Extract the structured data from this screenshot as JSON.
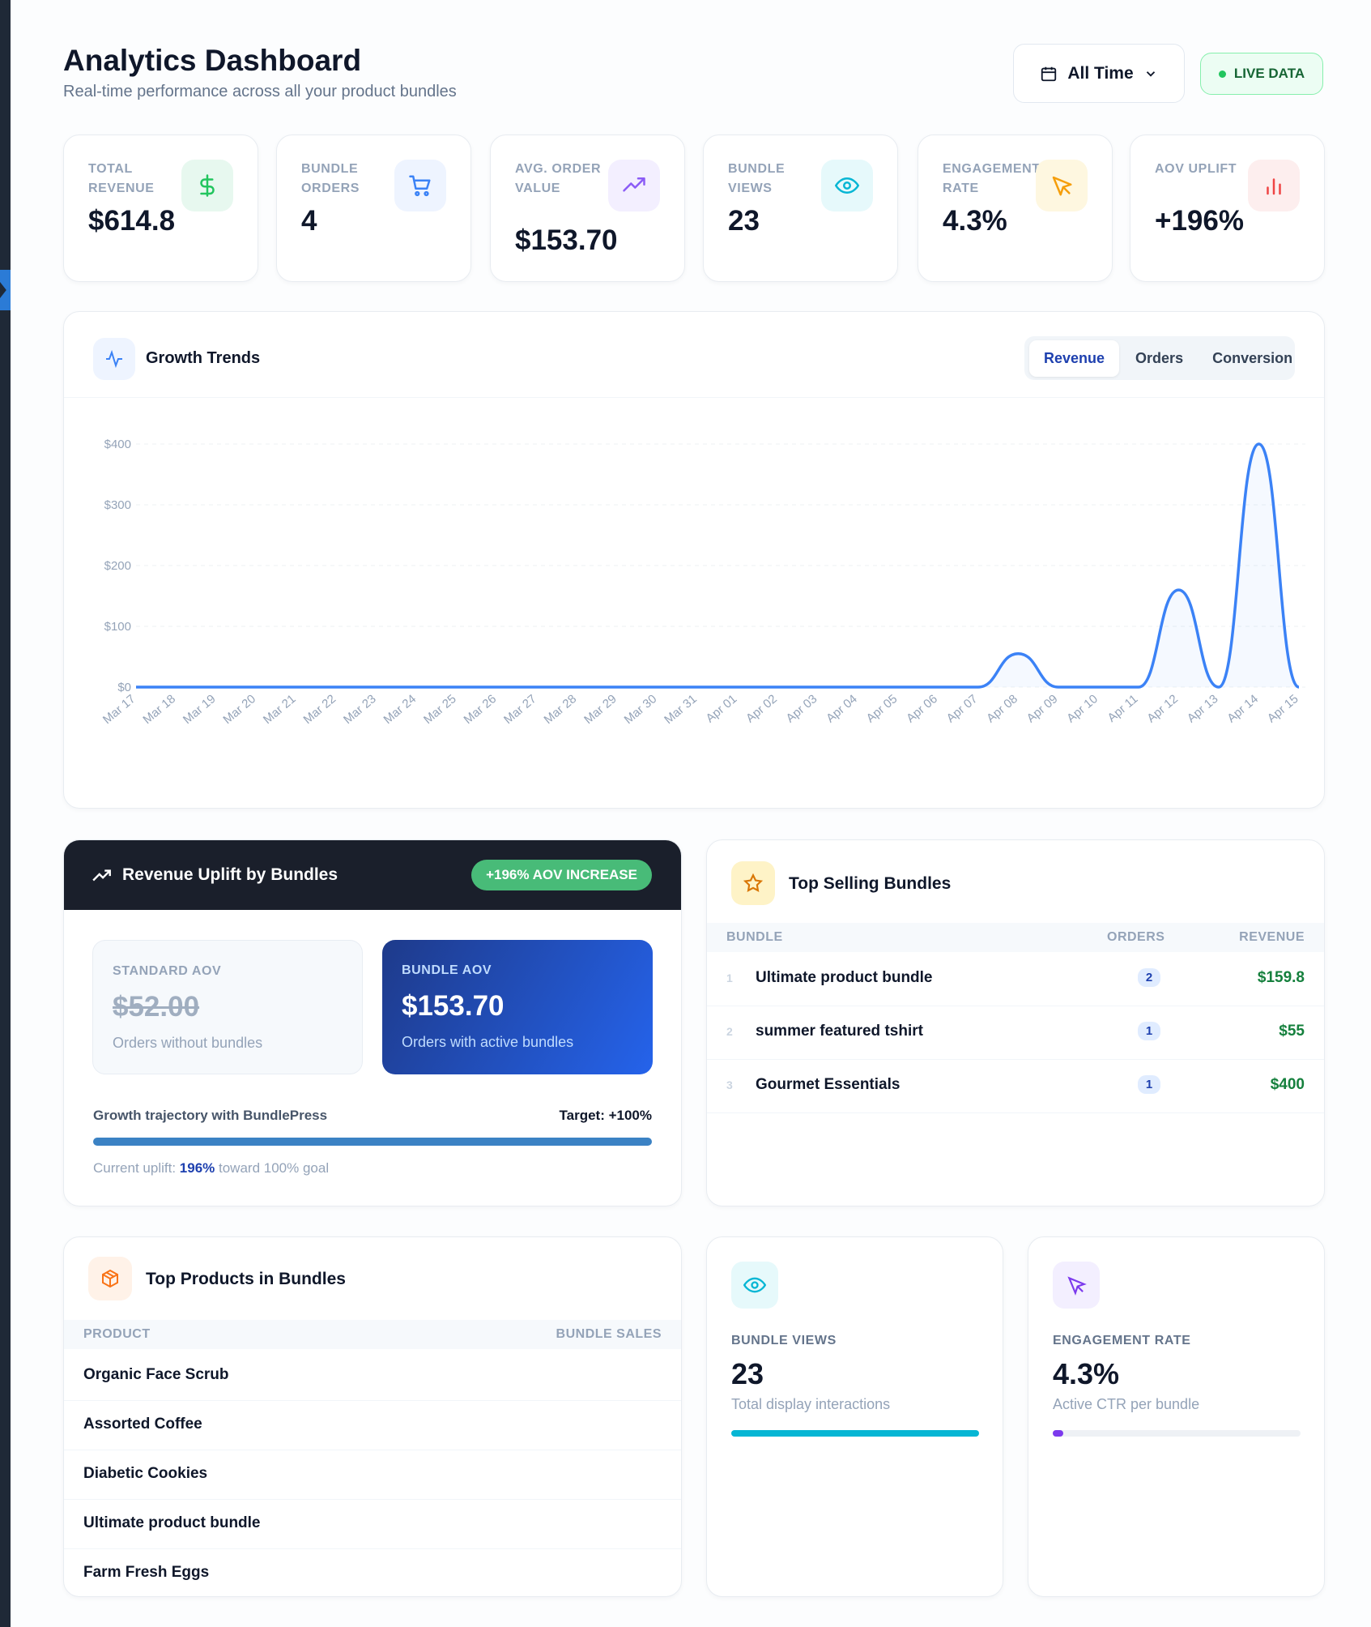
{
  "header": {
    "title": "Analytics Dashboard",
    "subtitle": "Real-time performance across all your product bundles",
    "range": "All Time",
    "live": "LIVE DATA"
  },
  "stats": [
    {
      "label": "TOTAL REVENUE",
      "value": "$614.8"
    },
    {
      "label": "BUNDLE ORDERS",
      "value": "4"
    },
    {
      "label": "AVG. ORDER VALUE",
      "value": "$153.70"
    },
    {
      "label": "BUNDLE VIEWS",
      "value": "23"
    },
    {
      "label": "ENGAGEMENT RATE",
      "value": "4.3%"
    },
    {
      "label": "AOV UPLIFT",
      "value": "+196%"
    }
  ],
  "growth": {
    "title": "Growth Trends",
    "tabs": [
      "Revenue",
      "Orders",
      "Conversion"
    ]
  },
  "chart_data": {
    "type": "line",
    "color": "#3b82f6",
    "grid": true,
    "categories": [
      "Mar 17",
      "Mar 18",
      "Mar 19",
      "Mar 20",
      "Mar 21",
      "Mar 22",
      "Mar 23",
      "Mar 24",
      "Mar 25",
      "Mar 26",
      "Mar 27",
      "Mar 28",
      "Mar 29",
      "Mar 30",
      "Mar 31",
      "Apr 01",
      "Apr 02",
      "Apr 03",
      "Apr 04",
      "Apr 05",
      "Apr 06",
      "Apr 07",
      "Apr 08",
      "Apr 09",
      "Apr 10",
      "Apr 11",
      "Apr 12",
      "Apr 13",
      "Apr 14",
      "Apr 15"
    ],
    "values": [
      0,
      0,
      0,
      0,
      0,
      0,
      0,
      0,
      0,
      0,
      0,
      0,
      0,
      0,
      0,
      0,
      0,
      0,
      0,
      0,
      0,
      0,
      55,
      0,
      0,
      0,
      159.8,
      0,
      400,
      0
    ],
    "ylim": [
      0,
      400
    ],
    "yticks": [
      {
        "value": 0,
        "label": "$0"
      },
      {
        "value": 100,
        "label": "$100"
      },
      {
        "value": 200,
        "label": "$200"
      },
      {
        "value": 300,
        "label": "$300"
      },
      {
        "value": 400,
        "label": "$400"
      }
    ]
  },
  "uplift": {
    "title": "Revenue Uplift by Bundles",
    "badge": "+196% AOV INCREASE",
    "standard": {
      "label": "STANDARD AOV",
      "value": "$52.00",
      "note": "Orders without bundles"
    },
    "bundle": {
      "label": "BUNDLE AOV",
      "value": "$153.70",
      "note": "Orders with active bundles"
    },
    "trajectory": "Growth trajectory with BundlePress",
    "target": "Target: +100%",
    "current_prefix": "Current uplift:",
    "current_value": "196%",
    "current_suffix": "toward 100% goal"
  },
  "top_bundles": {
    "title": "Top Selling Bundles",
    "columns": [
      "BUNDLE",
      "ORDERS",
      "REVENUE"
    ],
    "rows": [
      [
        "1",
        "Ultimate product bundle",
        "2",
        "$159.8"
      ],
      [
        "2",
        "summer featured tshirt",
        "1",
        "$55"
      ],
      [
        "3",
        "Gourmet Essentials",
        "1",
        "$400"
      ]
    ]
  },
  "top_products": {
    "title": "Top Products in Bundles",
    "columns": [
      "PRODUCT",
      "BUNDLE SALES"
    ],
    "rows": [
      "Organic Face Scrub",
      "Assorted Coffee",
      "Diabetic Cookies",
      "Ultimate product bundle",
      "Farm Fresh Eggs"
    ]
  },
  "views_card": {
    "label": "BUNDLE VIEWS",
    "value": "23",
    "note": "Total display interactions"
  },
  "engagement_card": {
    "label": "ENGAGEMENT RATE",
    "value": "4.3%",
    "note": "Active CTR per bundle"
  }
}
